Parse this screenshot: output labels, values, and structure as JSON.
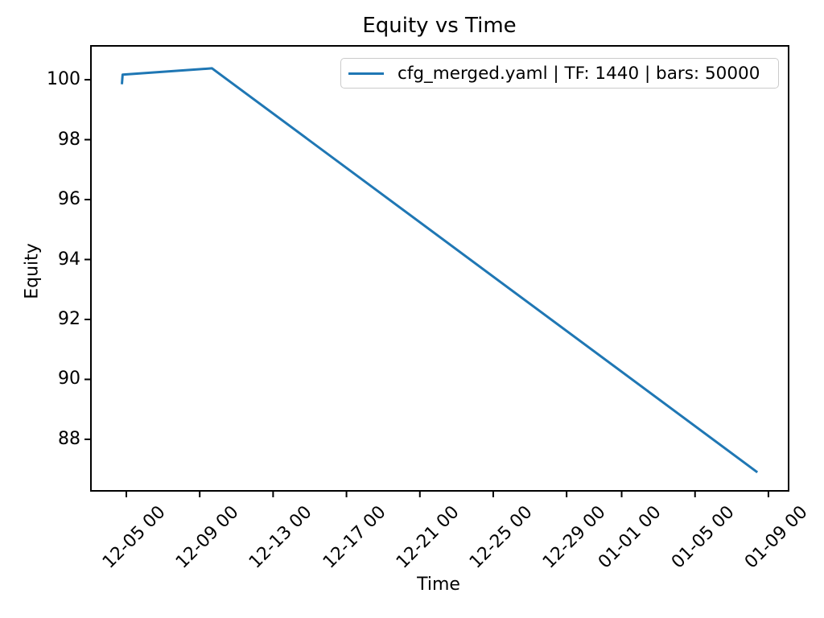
{
  "chart_data": {
    "type": "line",
    "title": "Equity vs Time",
    "xlabel": "Time",
    "ylabel": "Equity",
    "grid": false,
    "legend_position": "upper right",
    "axis_color": "#000000",
    "x_axis": {
      "unit": "days since 12-05 00:00",
      "xlim_days": [
        -1.93,
        36.1
      ],
      "ticks": [
        {
          "d": 0,
          "label": "12-05 00"
        },
        {
          "d": 4,
          "label": "12-09 00"
        },
        {
          "d": 8,
          "label": "12-13 00"
        },
        {
          "d": 12,
          "label": "12-17 00"
        },
        {
          "d": 16,
          "label": "12-21 00"
        },
        {
          "d": 20,
          "label": "12-25 00"
        },
        {
          "d": 24,
          "label": "12-29 00"
        },
        {
          "d": 27,
          "label": "01-01 00"
        },
        {
          "d": 31,
          "label": "01-05 00"
        },
        {
          "d": 35,
          "label": "01-09 00"
        }
      ]
    },
    "y_axis": {
      "ylim": [
        86.28,
        101.13
      ],
      "ticks": [
        100,
        98,
        96,
        94,
        92,
        90,
        88
      ]
    },
    "series": [
      {
        "name": "cfg_merged.yaml | TF: 1440 | bars: 50000",
        "color": "#1f77b4",
        "line_width": 3,
        "points": [
          {
            "time": "12-04 18:00",
            "d": -0.24,
            "equity": 99.85
          },
          {
            "time": "12-04 19:00",
            "d": -0.2,
            "equity": 100.17
          },
          {
            "time": "12-09 16:00",
            "d": 4.67,
            "equity": 100.38
          },
          {
            "time": "01-08 10:00",
            "d": 34.4,
            "equity": 86.9
          }
        ]
      }
    ]
  },
  "legend": {
    "entries": [
      {
        "label": "cfg_merged.yaml | TF: 1440 | bars: 50000",
        "color": "#1f77b4"
      }
    ]
  }
}
